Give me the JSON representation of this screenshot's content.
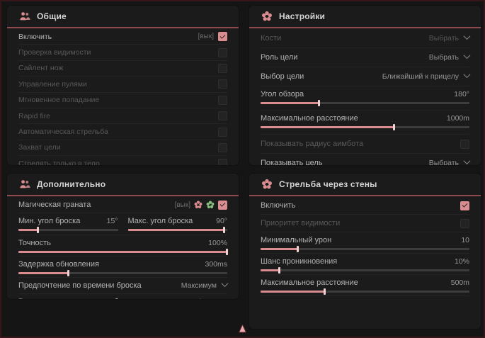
{
  "colors": {
    "accent": "#d98d91",
    "accent_dark": "#8f4b50",
    "green": "#86bb80",
    "panel_bg": "#1b1b1b"
  },
  "panels": {
    "general": {
      "title": "Общие",
      "rows": [
        {
          "label": "Включить",
          "tag": "[вык]",
          "checked": true,
          "dim": false
        },
        {
          "label": "Проверка видимости",
          "checked": false,
          "dim": true
        },
        {
          "label": "Сайлент нож",
          "checked": false,
          "dim": true
        },
        {
          "label": "Управление пулями",
          "checked": false,
          "dim": true
        },
        {
          "label": "Мгновенное попадание",
          "checked": false,
          "dim": true
        },
        {
          "label": "Rapid fire",
          "checked": false,
          "dim": true
        },
        {
          "label": "Автоматическая стрельба",
          "checked": false,
          "dim": true
        },
        {
          "label": "Захват цели",
          "checked": false,
          "dim": true
        },
        {
          "label": "Стрелять только в тело",
          "checked": false,
          "dim": true
        }
      ]
    },
    "settings": {
      "title": "Настройки",
      "rows": [
        {
          "label": "Кости",
          "value": "Выбрать",
          "dim": true
        },
        {
          "label": "Роль цели",
          "value": "Выбрать",
          "dim": false
        },
        {
          "label": "Выбор цели",
          "value": "Ближайший к прицелу",
          "dim": false
        },
        {
          "label": "Угол обзора",
          "value": "180°",
          "fill": 28
        },
        {
          "label": "Максимальное расстояние",
          "value": "1000m",
          "fill": 64
        },
        {
          "label": "Показывать радиус аимбота",
          "checked": false,
          "dim": true
        },
        {
          "label": "Показывать цель",
          "value": "Выбрать",
          "dim": false
        }
      ]
    },
    "additional": {
      "title": "Дополнительно",
      "rows": {
        "magic_grenade": {
          "label": "Магическая граната",
          "tag": "[вык]",
          "checked": true
        },
        "min_throw": {
          "label": "Мин. угол броска",
          "value": "15°",
          "fill": 20
        },
        "max_throw": {
          "label": "Макс. угол броска",
          "value": "90°",
          "fill": 97
        },
        "accuracy": {
          "label": "Точность",
          "value": "100%",
          "fill": 100
        },
        "update_delay": {
          "label": "Задержка обновления",
          "value": "300ms",
          "fill": 24
        },
        "throw_time_pref": {
          "label": "Предпочтение по времени броска",
          "value": "Максимум"
        },
        "advanced_throw": {
          "label": "Расширенные параметры броска",
          "value": "Выбрать"
        }
      }
    },
    "wallbang": {
      "title": "Стрельба через стены",
      "rows": [
        {
          "label": "Включить",
          "checked": true,
          "dim": false
        },
        {
          "label": "Приоритет видимости",
          "checked": false,
          "dim": true
        },
        {
          "label": "Минимальный урон",
          "value": "10",
          "fill": 18
        },
        {
          "label": "Шанс проникновения",
          "value": "10%",
          "fill": 9
        },
        {
          "label": "Максимальное расстояние",
          "value": "500m",
          "fill": 31
        }
      ]
    }
  }
}
